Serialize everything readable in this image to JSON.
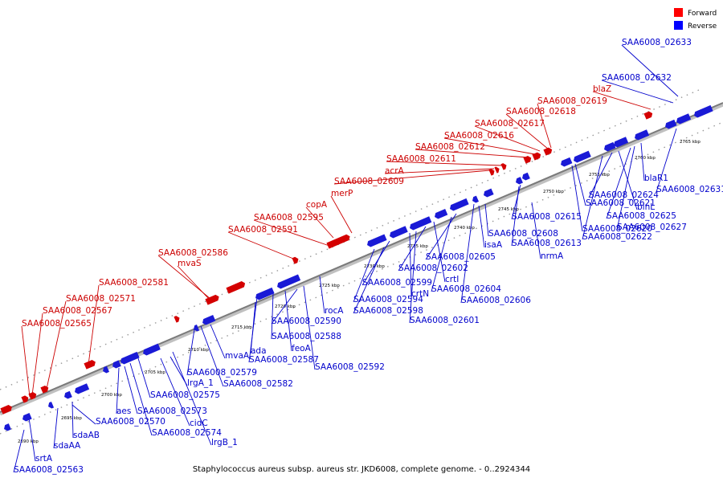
{
  "caption": "Staphylococcus aureus subsp. aureus str. JKD6008, complete genome. - 0..2924344",
  "legend": [
    {
      "label": "Forward",
      "color": "#ff0000"
    },
    {
      "label": "Reverse",
      "color": "#0000ff"
    }
  ],
  "ticks": [
    "2690 kbp",
    "2695 kbp",
    "2700 kbp",
    "2705 kbp",
    "2710 kbp",
    "2715 kbp",
    "2720 kbp",
    "2725 kbp",
    "2730 kbp",
    "2735 kbp",
    "2740 kbp",
    "2745 kbp",
    "2750 kbp",
    "2755 kbp",
    "2760 kbp",
    "2765 kbp"
  ],
  "forward_labels": [
    "SAA6008_02565",
    "SAA6008_02567",
    "SAA6008_02571",
    "SAA6008_02581",
    "mvaS",
    "SAA6008_02586",
    "SAA6008_02591",
    "SAA6008_02595",
    "copA",
    "merP",
    "SAA6008_02609",
    "acrA",
    "SAA6008_02611",
    "SAA6008_02612",
    "SAA6008_02616",
    "SAA6008_02617",
    "SAA6008_02618",
    "SAA6008_02619",
    "blaZ"
  ],
  "reverse_labels": [
    "SAA6008_02563",
    "srtA",
    "sdaAA",
    "sdaAB",
    "SAA6008_02570",
    "aes",
    "SAA6008_02573",
    "SAA6008_02574",
    "cidC",
    "lrgB_1",
    "SAA6008_02575",
    "lrgA_1",
    "SAA6008_02579",
    "SAA6008_02582",
    "mvaA",
    "ada",
    "SAA6008_02587",
    "SAA6008_02588",
    "feoA",
    "SAA6008_02590",
    "SAA6008_02592",
    "rocA",
    "SAA6008_02594",
    "SAA6008_02598",
    "SAA6008_02599",
    "crtN",
    "SAA6008_02601",
    "SAA6008_02602",
    "crtI",
    "SAA6008_02604",
    "SAA6008_02605",
    "SAA6008_02606",
    "isaA",
    "SAA6008_02608",
    "nrmA",
    "SAA6008_02613",
    "SAA6008_02615",
    "SAA6008_02620",
    "SAA6008_02621",
    "SAA6008_02622",
    "SAA6008_02624",
    "binL",
    "SAA6008_02625",
    "SAA6008_02627",
    "blaR1",
    "SAA6008_02631",
    "SAA6008_02632",
    "SAA6008_02633"
  ]
}
